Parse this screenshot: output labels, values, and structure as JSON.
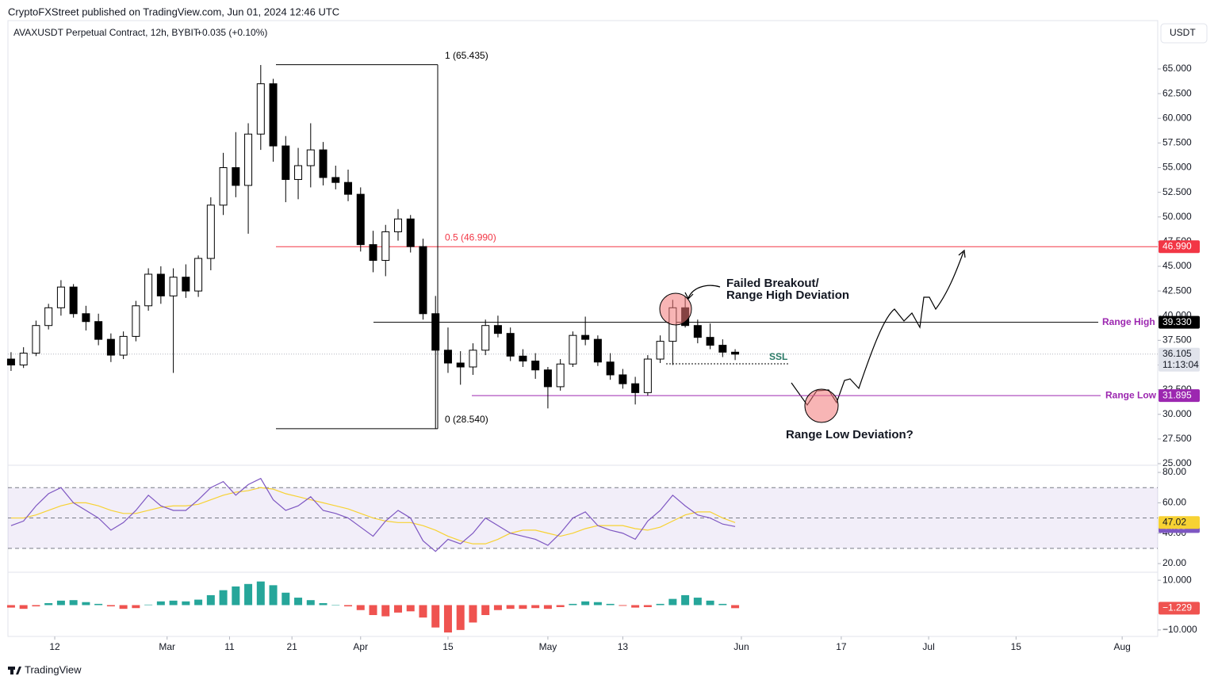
{
  "header": {
    "publisher": "CryptoFXStreet published on TradingView.com, Jun 01, 2024 12:46 UTC",
    "symbol": "AVAXUSDT Perpetual Contract, 12h, BYBIT",
    "change": "+0.035 (+0.10%)",
    "currency": "USDT"
  },
  "footer": {
    "brand": "TradingView"
  },
  "chart_data": [
    {
      "type": "candlestick",
      "x": [
        0,
        2,
        4,
        6,
        8,
        10,
        12,
        14,
        16,
        18,
        20,
        22,
        24,
        26,
        28,
        30,
        32,
        34,
        36,
        38,
        40,
        42,
        44,
        46,
        48,
        50,
        52,
        54,
        56,
        58,
        60,
        62,
        64,
        66,
        68,
        70,
        72,
        74,
        76,
        78,
        80,
        82,
        84,
        86,
        88,
        90,
        92,
        94,
        96,
        98,
        100,
        102,
        104,
        106,
        108,
        110,
        112,
        114,
        116
      ],
      "open": [
        35.6,
        35.0,
        36.2,
        39.0,
        40.8,
        42.9,
        40.2,
        39.4,
        37.6,
        36.0,
        37.9,
        41.0,
        44.2,
        42.0,
        43.9,
        42.5,
        45.8,
        51.2,
        55.0,
        53.2,
        58.4,
        63.5,
        57.2,
        53.8,
        55.2,
        56.8,
        54.0,
        53.5,
        52.3,
        47.2,
        45.6,
        48.5,
        49.8,
        47.0,
        40.2,
        36.5,
        35.2,
        34.8,
        36.5,
        39.0,
        38.2,
        35.9,
        35.4,
        34.5,
        32.8,
        35.1,
        38.0,
        37.6,
        35.3,
        34.0,
        33.1,
        32.2,
        35.6,
        37.4,
        40.8,
        39.0,
        37.8,
        37.0,
        36.3
      ],
      "high": [
        36.3,
        36.8,
        39.5,
        41.2,
        43.6,
        43.2,
        41.0,
        40.2,
        38.2,
        38.4,
        41.5,
        44.8,
        45.0,
        44.8,
        45.2,
        46.1,
        52.0,
        56.5,
        58.6,
        59.5,
        65.4,
        64.0,
        58.2,
        57.0,
        59.5,
        57.6,
        55.2,
        54.8,
        53.0,
        48.6,
        49.2,
        50.8,
        50.2,
        47.8,
        42.0,
        38.8,
        36.4,
        37.2,
        39.6,
        40.0,
        38.8,
        36.6,
        36.2,
        34.8,
        35.6,
        38.4,
        39.9,
        38.0,
        36.2,
        34.6,
        33.8,
        36.0,
        38.0,
        41.6,
        41.9,
        39.6,
        39.2,
        37.6,
        36.6
      ],
      "low": [
        34.4,
        34.7,
        35.9,
        38.6,
        40.0,
        39.8,
        38.5,
        37.0,
        35.3,
        35.6,
        37.4,
        40.5,
        41.2,
        34.2,
        41.8,
        41.9,
        44.6,
        50.2,
        52.0,
        48.3,
        56.8,
        55.6,
        51.5,
        51.8,
        53.0,
        53.2,
        52.8,
        51.6,
        46.5,
        44.4,
        44.0,
        47.6,
        46.4,
        39.6,
        28.54,
        34.2,
        33.0,
        34.0,
        36.0,
        37.8,
        35.4,
        34.8,
        33.6,
        30.6,
        32.4,
        34.8,
        37.0,
        34.9,
        33.5,
        32.6,
        31.0,
        31.9,
        35.2,
        35.0,
        38.8,
        37.2,
        36.6,
        35.8,
        35.5
      ],
      "close": [
        35.0,
        36.2,
        39.0,
        40.8,
        42.9,
        40.2,
        39.4,
        37.6,
        36.0,
        37.9,
        41.0,
        44.2,
        42.0,
        43.9,
        42.5,
        45.8,
        51.2,
        55.0,
        53.2,
        58.4,
        63.5,
        57.2,
        53.8,
        55.2,
        56.8,
        54.0,
        53.5,
        52.3,
        47.2,
        45.6,
        48.5,
        49.8,
        47.0,
        40.2,
        36.5,
        35.2,
        34.8,
        36.5,
        39.0,
        38.2,
        35.9,
        35.4,
        34.5,
        32.8,
        35.1,
        38.0,
        37.6,
        35.3,
        34.0,
        33.1,
        32.2,
        35.6,
        37.4,
        40.8,
        39.0,
        37.8,
        37.0,
        36.3,
        36.1
      ],
      "up_color": "#ffffff",
      "down_color": "#000000",
      "xlim": [
        -0.5,
        183.7
      ],
      "xticks": [
        {
          "value": 7,
          "label": "12"
        },
        {
          "value": 25,
          "label": "Mar"
        },
        {
          "value": 35,
          "label": "11"
        },
        {
          "value": 45,
          "label": "21"
        },
        {
          "value": 56,
          "label": "Apr"
        },
        {
          "value": 70,
          "label": "15"
        },
        {
          "value": 86,
          "label": "May"
        },
        {
          "value": 98,
          "label": "13"
        },
        {
          "value": 117,
          "label": "Jun"
        },
        {
          "value": 133,
          "label": "17"
        },
        {
          "value": 147,
          "label": "Jul"
        },
        {
          "value": 161,
          "label": "15"
        },
        {
          "value": 178,
          "label": "Aug"
        }
      ],
      "ylim": [
        24.84,
        69.74
      ],
      "yticks": [
        {
          "value": 25,
          "label": "25.000"
        },
        {
          "value": 27.5,
          "label": "27.500"
        },
        {
          "value": 30,
          "label": "30.000"
        },
        {
          "value": 32.5,
          "label": "32.500"
        },
        {
          "value": 35,
          "label": "35.000"
        },
        {
          "value": 37.5,
          "label": "37.500"
        },
        {
          "value": 40,
          "label": "40.000"
        },
        {
          "value": 42.5,
          "label": "42.500"
        },
        {
          "value": 45,
          "label": "45.000"
        },
        {
          "value": 47.5,
          "label": "47.500"
        },
        {
          "value": 50,
          "label": "50.000"
        },
        {
          "value": 52.5,
          "label": "52.500"
        },
        {
          "value": 55,
          "label": "55.000"
        },
        {
          "value": 57.5,
          "label": "57.500"
        },
        {
          "value": 60,
          "label": "60.000"
        },
        {
          "value": 62.5,
          "label": "62.500"
        },
        {
          "value": 65,
          "label": "65.000"
        }
      ],
      "fib_levels": [
        {
          "value": 65.435,
          "label": "1 (65.435)",
          "color": "#000000"
        },
        {
          "value": 46.99,
          "label": "0.5 (46.990)",
          "color": "#f23645",
          "tag": "46.990"
        },
        {
          "value": 28.54,
          "label": "0 (28.540)",
          "color": "#000000"
        }
      ],
      "range_high": {
        "value": 39.33,
        "label": "Range High",
        "tag": "39.330",
        "color": "#9c27b0"
      },
      "range_low": {
        "value": 31.895,
        "label": "Range Low",
        "color": "#9c27b0"
      },
      "ssl": {
        "value": 35.12,
        "label": "SSL",
        "color": "#2a7a66"
      },
      "last_price": {
        "value": 36.105,
        "countdown": "11:13:04"
      },
      "annotations": {
        "failed_breakout": [
          "Failed Breakout/",
          "Range High Deviation"
        ],
        "range_low_deviation": "Range Low Deviation?"
      }
    },
    {
      "type": "line",
      "series": [
        {
          "color": "#7e57c2",
          "values": [
            45,
            48,
            58,
            66,
            70,
            60,
            55,
            50,
            42,
            47,
            55,
            65,
            58,
            55,
            55,
            62,
            70,
            74,
            65,
            72,
            76,
            62,
            55,
            58,
            64,
            55,
            53,
            50,
            44,
            38,
            48,
            55,
            50,
            35,
            28,
            36,
            33,
            40,
            50,
            45,
            40,
            38,
            36,
            32,
            40,
            50,
            54,
            45,
            42,
            40,
            36,
            48,
            55,
            65,
            58,
            52,
            50,
            46,
            44.38
          ]
        },
        {
          "color": "#f7d233",
          "values": [
            50,
            50,
            52,
            55,
            58,
            60,
            60,
            58,
            55,
            53,
            53,
            55,
            57,
            58,
            58,
            59,
            62,
            65,
            67,
            68,
            70,
            69,
            66,
            64,
            62,
            60,
            58,
            56,
            53,
            50,
            48,
            47,
            47,
            45,
            42,
            38,
            35,
            33,
            33,
            36,
            40,
            42,
            42,
            40,
            38,
            40,
            43,
            45,
            45,
            45,
            43,
            42,
            44,
            48,
            52,
            54,
            54,
            50,
            47.02
          ]
        }
      ],
      "levels": [
        70,
        50,
        30
      ],
      "ylim": [
        14.3,
        84.2
      ],
      "yticks": [
        {
          "value": 20,
          "label": "20.00"
        },
        {
          "value": 40,
          "label": "40.00"
        },
        {
          "value": 60,
          "label": "60.00"
        },
        {
          "value": 80,
          "label": "80.00"
        }
      ]
    },
    {
      "type": "histogram",
      "values": [
        -1,
        -1.5,
        -0.5,
        0.8,
        1.8,
        2,
        1.2,
        0.5,
        -0.5,
        -1.5,
        -1.2,
        0.2,
        1.5,
        1.8,
        1.5,
        2.2,
        4,
        6,
        7.5,
        8.5,
        9.5,
        8,
        5,
        3,
        2,
        0.8,
        0,
        -0.5,
        -2,
        -4,
        -4.5,
        -3,
        -2.5,
        -5,
        -9,
        -11,
        -10,
        -7,
        -4,
        -2,
        -1.5,
        -1.5,
        -1.2,
        -1.5,
        -0.8,
        0.5,
        1.5,
        1.2,
        0.5,
        -0.3,
        -1,
        -0.8,
        0.5,
        2.5,
        4,
        3,
        1.8,
        0.5,
        -1.229
      ],
      "tag_label": "−1.229",
      "positive_color": "#26a69a",
      "negative_color": "#ef5350",
      "ylim": [
        -12.6,
        12.9
      ],
      "yticks": [
        {
          "value": 10,
          "label": "10.000"
        },
        {
          "value": -10,
          "label": "−10.000"
        }
      ]
    }
  ]
}
